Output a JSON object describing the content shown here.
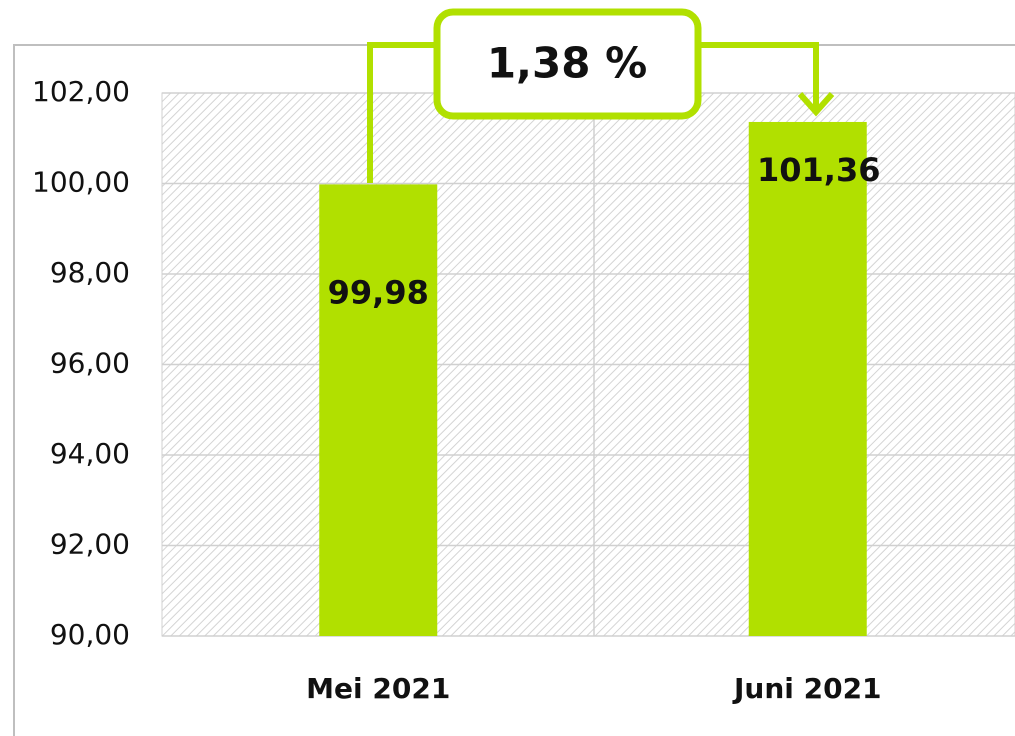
{
  "chart_data": {
    "type": "bar",
    "categories": [
      "Mei 2021",
      "Juni 2021"
    ],
    "values": [
      99.98,
      101.36
    ],
    "value_labels": [
      "99,98",
      "101,36"
    ],
    "color": "#b1e000",
    "annotation": "1,38 %",
    "ylim": [
      90,
      102
    ],
    "yticks": [
      {
        "value": 90,
        "label": "90,00"
      },
      {
        "value": 92,
        "label": "92,00"
      },
      {
        "value": 94,
        "label": "94,00"
      },
      {
        "value": 96,
        "label": "96,00"
      },
      {
        "value": 98,
        "label": "98,00"
      },
      {
        "value": 100,
        "label": "100,00"
      },
      {
        "value": 102,
        "label": "102,00"
      }
    ],
    "grid": true
  }
}
